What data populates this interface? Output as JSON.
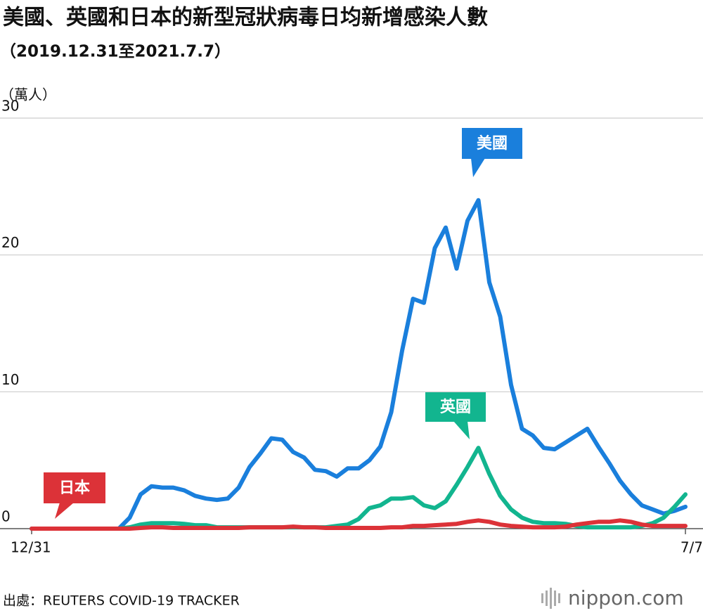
{
  "chart_data": {
    "type": "line",
    "title": "美國、英國和日本的新型冠狀病毒日均新增感染人數",
    "subtitle": "（2019.12.31至2021.7.7）",
    "y_label": "（萬人）",
    "source": "出處：REUTERS COVID-19 TRACKER",
    "brand": "nippon.com",
    "categories": [
      "12/31",
      null,
      null,
      null,
      null,
      null,
      null,
      null,
      null,
      null,
      null,
      null,
      null,
      null,
      null,
      null,
      null,
      null,
      null,
      null,
      null,
      null,
      null,
      null,
      null,
      null,
      null,
      null,
      null,
      null,
      null,
      null,
      null,
      null,
      null,
      null,
      null,
      null,
      null,
      null,
      null,
      null,
      null,
      null,
      null,
      null,
      null,
      null,
      null,
      null,
      null,
      null,
      null,
      null,
      null,
      null,
      null,
      null,
      null,
      null,
      "7/7"
    ],
    "ylim": [
      0,
      30
    ],
    "yticks": [
      0,
      10,
      20,
      30
    ],
    "grid": true,
    "series": [
      {
        "name": "美國",
        "color": "#1a7fdc",
        "values": [
          0,
          0,
          0,
          0,
          0,
          0,
          0,
          0,
          0,
          0.8,
          2.5,
          3.1,
          3.0,
          3.0,
          2.8,
          2.4,
          2.2,
          2.1,
          2.2,
          3.0,
          4.5,
          5.5,
          6.6,
          6.5,
          5.6,
          5.2,
          4.3,
          4.2,
          3.8,
          4.4,
          4.4,
          5.0,
          6.0,
          8.5,
          13.0,
          16.8,
          16.5,
          20.5,
          22.0,
          19.0,
          22.5,
          24.0,
          18.0,
          15.5,
          10.5,
          7.3,
          6.8,
          5.9,
          5.8,
          6.3,
          6.8,
          7.3,
          6.0,
          4.8,
          3.5,
          2.5,
          1.7,
          1.4,
          1.1,
          1.3,
          1.6
        ]
      },
      {
        "name": "英國",
        "color": "#12b58f",
        "values": [
          0,
          0,
          0,
          0,
          0,
          0,
          0,
          0,
          0,
          0.1,
          0.3,
          0.4,
          0.4,
          0.4,
          0.35,
          0.25,
          0.25,
          0.1,
          0.1,
          0.1,
          0.1,
          0.1,
          0.1,
          0.1,
          0.1,
          0.1,
          0.1,
          0.1,
          0.2,
          0.3,
          0.7,
          1.5,
          1.7,
          2.2,
          2.2,
          2.3,
          1.7,
          1.5,
          2.0,
          3.2,
          4.5,
          5.9,
          4.0,
          2.4,
          1.4,
          0.8,
          0.5,
          0.4,
          0.4,
          0.35,
          0.2,
          0.1,
          0.1,
          0.1,
          0.1,
          0.1,
          0.2,
          0.4,
          0.8,
          1.6,
          2.5
        ]
      },
      {
        "name": "日本",
        "color": "#dc3238",
        "values": [
          0,
          0,
          0,
          0,
          0,
          0,
          0,
          0,
          0,
          0,
          0.05,
          0.1,
          0.1,
          0.05,
          0.05,
          0.05,
          0.05,
          0.05,
          0.05,
          0.05,
          0.1,
          0.1,
          0.1,
          0.1,
          0.15,
          0.1,
          0.1,
          0.05,
          0.05,
          0.05,
          0.05,
          0.05,
          0.05,
          0.1,
          0.1,
          0.2,
          0.2,
          0.25,
          0.3,
          0.35,
          0.5,
          0.6,
          0.5,
          0.3,
          0.2,
          0.15,
          0.1,
          0.1,
          0.1,
          0.15,
          0.3,
          0.4,
          0.5,
          0.5,
          0.6,
          0.5,
          0.3,
          0.2,
          0.2,
          0.2,
          0.2
        ]
      }
    ]
  }
}
